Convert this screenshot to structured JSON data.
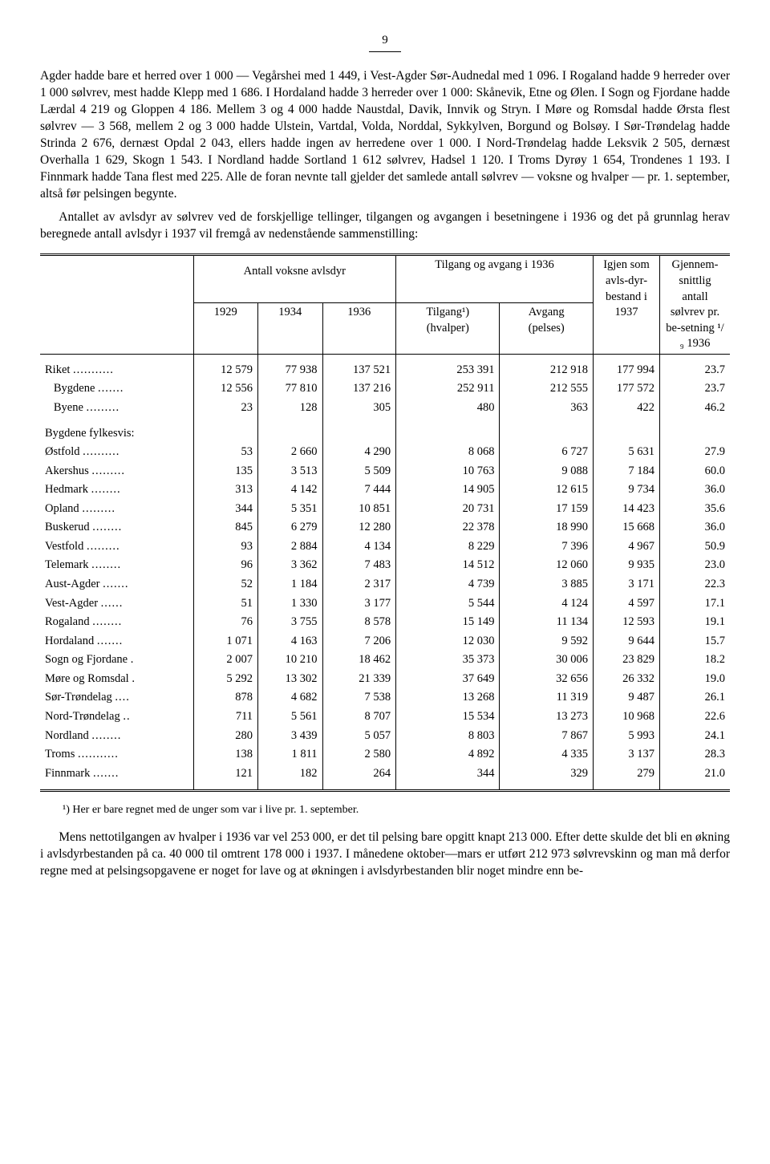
{
  "page_number": "9",
  "paragraph1": "Agder hadde bare et herred over 1 000 — Vegårshei med 1 449, i Vest-Agder Sør-Audnedal med 1 096. I Rogaland hadde 9 herreder over 1 000 sølvrev, mest hadde Klepp med 1 686. I Hordaland hadde 3 herreder over 1 000: Skånevik, Etne og Ølen. I Sogn og Fjordane hadde Lærdal 4 219 og Gloppen 4 186. Mellem 3 og 4 000 hadde Naustdal, Davik, Innvik og Stryn. I Møre og Romsdal hadde Ørsta flest sølvrev — 3 568, mellem 2 og 3 000 hadde Ulstein, Vartdal, Volda, Norddal, Sykkylven, Borgund og Bolsøy. I Sør-Trøndelag hadde Strinda 2 676, dernæst Opdal 2 043, ellers hadde ingen av herredene over 1 000. I Nord-Trøndelag hadde Leksvik 2 505, dernæst Overhalla 1 629, Skogn 1 543. I Nordland hadde Sortland 1 612 sølvrev, Hadsel 1 120. I Troms Dyrøy 1 654, Trondenes 1 193. I Finnmark hadde Tana flest med 225. Alle de foran nevnte tall gjelder det samlede antall sølvrev — voksne og hvalper — pr. 1. september, altså før pelsingen begynte.",
  "paragraph2": "Antallet av avlsdyr av sølvrev ved de forskjellige tellinger, tilgangen og avgangen i besetningene i 1936 og det på grunnlag herav beregnede antall avlsdyr i 1937 vil fremgå av nedenstående sammenstilling:",
  "table": {
    "header": {
      "group1": "Antall voksne avlsdyr",
      "group2": "Tilgang og avgang i 1936",
      "col6": "Igjen som avls-dyr-bestand i 1937",
      "col7": "Gjennem-snittlig antall sølvrev pr. be-setning ¹/₉ 1936",
      "sub": {
        "c1": "1929",
        "c2": "1934",
        "c3": "1936",
        "c4_a": "Tilgang¹)",
        "c4_b": "(hvalper)",
        "c5_a": "Avgang",
        "c5_b": "(pelses)"
      }
    },
    "rows": [
      {
        "label": "Riket",
        "dots": "...........",
        "c1": "12 579",
        "c2": "77 938",
        "c3": "137 521",
        "c4": "253 391",
        "c5": "212 918",
        "c6": "177 994",
        "c7": "23.7"
      },
      {
        "label": "Bygdene",
        "dots": ".......",
        "c1": "12 556",
        "c2": "77 810",
        "c3": "137 216",
        "c4": "252 911",
        "c5": "212 555",
        "c6": "177 572",
        "c7": "23.7",
        "indent": true
      },
      {
        "label": "Byene",
        "dots": ".........",
        "c1": "23",
        "c2": "128",
        "c3": "305",
        "c4": "480",
        "c5": "363",
        "c6": "422",
        "c7": "46.2",
        "indent": true
      }
    ],
    "section_label": "Bygdene fylkesvis:",
    "fylker": [
      {
        "label": "Østfold",
        "dots": "..........",
        "c1": "53",
        "c2": "2 660",
        "c3": "4 290",
        "c4": "8 068",
        "c5": "6 727",
        "c6": "5 631",
        "c7": "27.9"
      },
      {
        "label": "Akershus",
        "dots": ".........",
        "c1": "135",
        "c2": "3 513",
        "c3": "5 509",
        "c4": "10 763",
        "c5": "9 088",
        "c6": "7 184",
        "c7": "60.0"
      },
      {
        "label": "Hedmark",
        "dots": "........",
        "c1": "313",
        "c2": "4 142",
        "c3": "7 444",
        "c4": "14 905",
        "c5": "12 615",
        "c6": "9 734",
        "c7": "36.0"
      },
      {
        "label": "Opland",
        "dots": ".........",
        "c1": "344",
        "c2": "5 351",
        "c3": "10 851",
        "c4": "20 731",
        "c5": "17 159",
        "c6": "14 423",
        "c7": "35.6"
      },
      {
        "label": "Buskerud",
        "dots": "........",
        "c1": "845",
        "c2": "6 279",
        "c3": "12 280",
        "c4": "22 378",
        "c5": "18 990",
        "c6": "15 668",
        "c7": "36.0"
      },
      {
        "label": "Vestfold",
        "dots": ".........",
        "c1": "93",
        "c2": "2 884",
        "c3": "4 134",
        "c4": "8 229",
        "c5": "7 396",
        "c6": "4 967",
        "c7": "50.9"
      },
      {
        "label": "Telemark",
        "dots": "........",
        "c1": "96",
        "c2": "3 362",
        "c3": "7 483",
        "c4": "14 512",
        "c5": "12 060",
        "c6": "9 935",
        "c7": "23.0"
      },
      {
        "label": "Aust-Agder",
        "dots": ".......",
        "c1": "52",
        "c2": "1 184",
        "c3": "2 317",
        "c4": "4 739",
        "c5": "3 885",
        "c6": "3 171",
        "c7": "22.3"
      },
      {
        "label": "Vest-Agder",
        "dots": "......",
        "c1": "51",
        "c2": "1 330",
        "c3": "3 177",
        "c4": "5 544",
        "c5": "4 124",
        "c6": "4 597",
        "c7": "17.1"
      },
      {
        "label": "Rogaland",
        "dots": "........",
        "c1": "76",
        "c2": "3 755",
        "c3": "8 578",
        "c4": "15 149",
        "c5": "11 134",
        "c6": "12 593",
        "c7": "19.1"
      },
      {
        "label": "Hordaland",
        "dots": ".......",
        "c1": "1 071",
        "c2": "4 163",
        "c3": "7 206",
        "c4": "12 030",
        "c5": "9 592",
        "c6": "9 644",
        "c7": "15.7"
      },
      {
        "label": "Sogn og Fjordane",
        "dots": ".",
        "c1": "2 007",
        "c2": "10 210",
        "c3": "18 462",
        "c4": "35 373",
        "c5": "30 006",
        "c6": "23 829",
        "c7": "18.2"
      },
      {
        "label": "Møre og Romsdal",
        "dots": ".",
        "c1": "5 292",
        "c2": "13 302",
        "c3": "21 339",
        "c4": "37 649",
        "c5": "32 656",
        "c6": "26 332",
        "c7": "19.0"
      },
      {
        "label": "Sør-Trøndelag",
        "dots": "....",
        "c1": "878",
        "c2": "4 682",
        "c3": "7 538",
        "c4": "13 268",
        "c5": "11 319",
        "c6": "9 487",
        "c7": "26.1"
      },
      {
        "label": "Nord-Trøndelag",
        "dots": "..",
        "c1": "711",
        "c2": "5 561",
        "c3": "8 707",
        "c4": "15 534",
        "c5": "13 273",
        "c6": "10 968",
        "c7": "22.6"
      },
      {
        "label": "Nordland",
        "dots": "........",
        "c1": "280",
        "c2": "3 439",
        "c3": "5 057",
        "c4": "8 803",
        "c5": "7 867",
        "c6": "5 993",
        "c7": "24.1"
      },
      {
        "label": "Troms",
        "dots": "...........",
        "c1": "138",
        "c2": "1 811",
        "c3": "2 580",
        "c4": "4 892",
        "c5": "4 335",
        "c6": "3 137",
        "c7": "28.3"
      },
      {
        "label": "Finnmark",
        "dots": ".......",
        "c1": "121",
        "c2": "182",
        "c3": "264",
        "c4": "344",
        "c5": "329",
        "c6": "279",
        "c7": "21.0"
      }
    ]
  },
  "footnote": "¹) Her er bare regnet med de unger som var i live pr. 1. september.",
  "paragraph3": "Mens nettotilgangen av hvalper i 1936 var vel 253 000, er det til pelsing bare opgitt knapt 213 000. Efter dette skulde det bli en økning i avlsdyrbestanden på ca. 40 000 til omtrent 178 000 i 1937. I månedene oktober—mars er utført 212 973 sølvrevskinn og man må derfor regne med at pelsingsopgavene er noget for lave og at økningen i avlsdyrbestanden blir noget mindre enn be-"
}
